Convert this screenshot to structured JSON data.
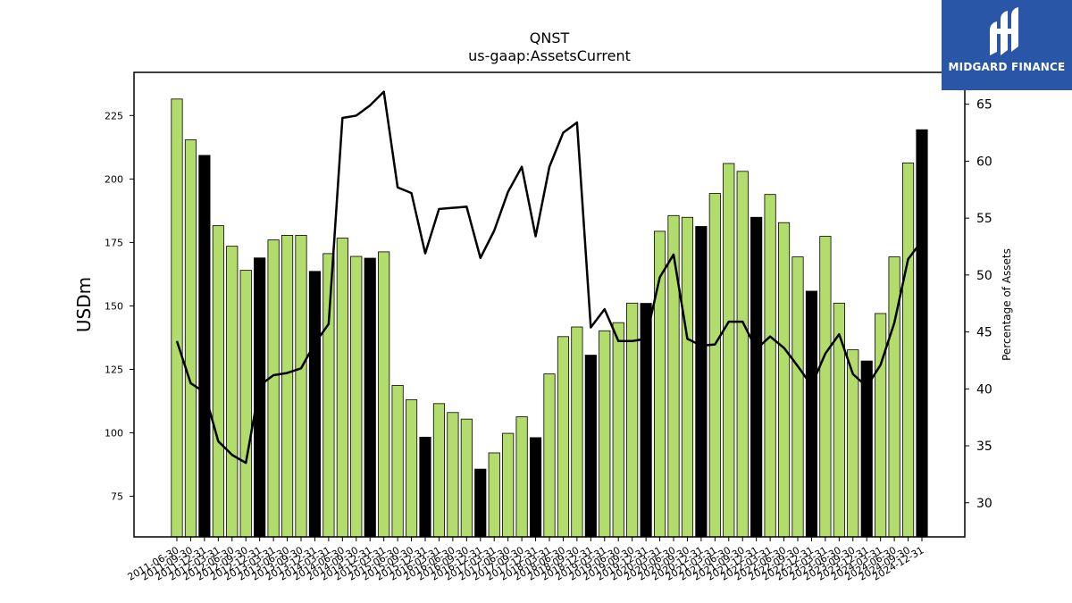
{
  "chart_data": {
    "type": "bar",
    "title": "QNST",
    "subtitle": "us-gaap:AssetsCurrent",
    "ylabel": "USDm",
    "ylabel_right": "Percentage of Assets",
    "ylim": [
      59,
      242
    ],
    "ylim_right": [
      27,
      67.8
    ],
    "yticks": [
      75,
      100,
      125,
      150,
      175,
      200,
      225
    ],
    "yticks_right": [
      30,
      35,
      40,
      45,
      50,
      55,
      60,
      65
    ],
    "colors": {
      "bar_default": "#b2dc6c",
      "bar_highlight": "#000000",
      "line": "#000000",
      "bar_edge": "#000000"
    },
    "categories": [
      "2011-06-30",
      "2011-09-30",
      "2011-12-31",
      "2012-03-31",
      "2012-06-30",
      "2012-09-30",
      "2012-12-31",
      "2013-03-31",
      "2013-06-30",
      "2013-09-30",
      "2013-12-31",
      "2014-03-31",
      "2014-06-30",
      "2014-09-30",
      "2014-12-31",
      "2015-03-31",
      "2015-06-30",
      "2015-09-30",
      "2015-12-31",
      "2016-03-31",
      "2016-06-30",
      "2016-09-30",
      "2016-12-31",
      "2017-03-31",
      "2017-06-30",
      "2017-09-30",
      "2017-12-31",
      "2018-03-31",
      "2018-06-30",
      "2018-09-30",
      "2018-12-31",
      "2019-03-31",
      "2019-06-30",
      "2019-09-30",
      "2019-12-31",
      "2020-03-31",
      "2020-06-30",
      "2020-09-30",
      "2020-12-31",
      "2021-03-31",
      "2021-06-30",
      "2021-09-30",
      "2021-12-31",
      "2022-03-31",
      "2022-06-30",
      "2022-09-30",
      "2022-12-31",
      "2023-03-31",
      "2023-06-30",
      "2023-09-30",
      "2023-12-31",
      "2024-03-31",
      "2024-06-30",
      "2024-09-30",
      "2024-12-31"
    ],
    "tick_labels": [
      "2011-06-30",
      "2011-09-30",
      "2011-12-31",
      "2012-03-31",
      "2012-06-30",
      "2012-09-30",
      "2012-12-31",
      "2013-03-31",
      "2013-06-30",
      "2013-09-30",
      "2013-12-31",
      "2014-03-31",
      "2014-06-30",
      "2014-09-30",
      "2014-12-31",
      "2015-03-31",
      "2015-06-30",
      "2015-09-30",
      "2015-12-31",
      "2016-03-31",
      "2016-06-30",
      "2016-09-30",
      "2016-12-31",
      "2017-03-31",
      "2017-06-30",
      "2017-09-30",
      "2017-12-31",
      "2018-03-31",
      "2018-06-30",
      "2018-09-30",
      "2018-12-31",
      "2019-03-31",
      "2019-06-30",
      "2019-09-30",
      "2019-12-31",
      "2020-03-31",
      "2020-06-30",
      "2020-09-30",
      "2020-12-31",
      "2021-03-31",
      "2021-06-30",
      "2021-09-30",
      "2021-12-31",
      "2022-03-31",
      "2022-06-30",
      "2022-09-30",
      "2022-12-31",
      "2023-03-31",
      "2023-06-30",
      "2023-09-30",
      "2023-12-31",
      "2024-03-31",
      "2024-06-30",
      "2024-09-30",
      "2024-12-31"
    ],
    "series": [
      {
        "type": "bar",
        "values": [
          231.5,
          215.4,
          209.3,
          181.6,
          173.5,
          164.0,
          168.9,
          176.0,
          177.8,
          177.8,
          163.6,
          170.6,
          176.7,
          169.5,
          168.8,
          171.3,
          118.7,
          113.0,
          98.3,
          111.5,
          108.0,
          105.4,
          85.7,
          92.1,
          99.8,
          106.3,
          98.1,
          123.2,
          137.9,
          141.7,
          130.6,
          140.2,
          143.4,
          151.1,
          151.0,
          179.4,
          185.6,
          184.9,
          181.3,
          194.3,
          206.1,
          203.0,
          184.9,
          193.9,
          182.8,
          169.3,
          155.8,
          177.4,
          151.1,
          132.7,
          128.3,
          147.0,
          169.3,
          206.3,
          219.4
        ],
        "highlight": [
          false,
          false,
          true,
          false,
          false,
          false,
          true,
          false,
          false,
          false,
          true,
          false,
          false,
          false,
          true,
          false,
          false,
          false,
          true,
          false,
          false,
          false,
          true,
          false,
          false,
          false,
          true,
          false,
          false,
          false,
          true,
          false,
          false,
          false,
          true,
          false,
          false,
          false,
          true,
          false,
          false,
          false,
          true,
          false,
          false,
          false,
          true,
          false,
          false,
          false,
          true,
          false,
          false,
          false,
          true
        ]
      },
      {
        "type": "line",
        "axis": "right",
        "values": [
          44.2,
          40.5,
          39.7,
          35.4,
          34.2,
          33.5,
          40.3,
          41.2,
          41.4,
          41.8,
          44.0,
          45.7,
          63.8,
          64.0,
          64.9,
          66.1,
          57.7,
          57.2,
          51.9,
          55.8,
          55.9,
          56.0,
          51.5,
          53.9,
          57.3,
          59.5,
          53.4,
          59.5,
          62.5,
          63.4,
          45.4,
          47.0,
          44.2,
          44.2,
          44.4,
          49.8,
          51.8,
          44.4,
          43.8,
          43.9,
          45.9,
          45.9,
          43.5,
          44.6,
          43.6,
          42.0,
          40.3,
          43.1,
          44.8,
          41.3,
          40.2,
          42.1,
          45.8,
          51.4,
          53.0
        ]
      }
    ],
    "grid": false,
    "legend": "none"
  },
  "logo": {
    "text": "MIDGARD FINANCE"
  }
}
